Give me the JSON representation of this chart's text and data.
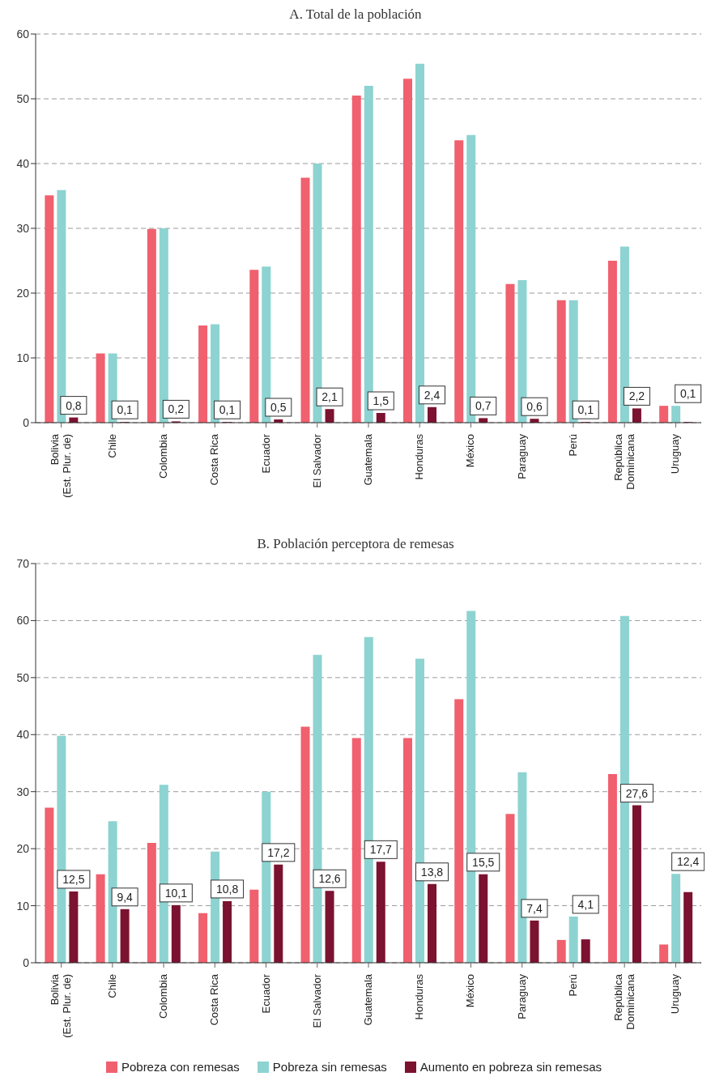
{
  "chart_data": [
    {
      "type": "bar",
      "title": "A. Total de la población",
      "categories": [
        "Bolivia\n(Est. Plur. de)",
        "Chile",
        "Colombia",
        "Costa Rica",
        "Ecuador",
        "El Salvador",
        "Guatemala",
        "Honduras",
        "México",
        "Paraguay",
        "Perú",
        "República\nDominicana",
        "Uruguay"
      ],
      "series": [
        {
          "color": "#f0606e",
          "values": [
            35.1,
            10.7,
            29.9,
            15.0,
            23.6,
            37.8,
            50.5,
            53.1,
            43.6,
            21.4,
            18.9,
            25.0,
            2.6
          ]
        },
        {
          "color": "#8dd3d1",
          "values": [
            35.9,
            10.7,
            30.0,
            15.2,
            24.1,
            40.0,
            52.0,
            55.4,
            44.4,
            22.0,
            18.9,
            27.2,
            2.6
          ]
        },
        {
          "color": "#7b1230",
          "values": [
            0.8,
            0.1,
            0.2,
            0.1,
            0.5,
            2.1,
            1.5,
            2.4,
            0.7,
            0.6,
            0.1,
            2.2,
            0.1
          ],
          "value_labels": [
            "0,8",
            "0,1",
            "0,2",
            "0,1",
            "0,5",
            "2,1",
            "1,5",
            "2,4",
            "0,7",
            "0,6",
            "0,1",
            "2,2",
            "0,1"
          ]
        }
      ],
      "ylim": [
        0,
        60
      ],
      "yticks": [
        0,
        10,
        20,
        30,
        40,
        50,
        60
      ],
      "grid": "y",
      "legend": false
    },
    {
      "type": "bar",
      "title": "B. Población perceptora de remesas",
      "categories": [
        "Bolivia\n(Est. Plur. de)",
        "Chile",
        "Colombia",
        "Costa Rica",
        "Ecuador",
        "El Salvador",
        "Guatemala",
        "Honduras",
        "México",
        "Paraguay",
        "Perú",
        "República\nDominicana",
        "Uruguay"
      ],
      "series": [
        {
          "name": "Pobreza con remesas",
          "color": "#f0606e",
          "values": [
            27.2,
            15.5,
            21.0,
            8.7,
            12.8,
            41.4,
            39.4,
            39.4,
            46.2,
            26.1,
            4.0,
            33.1,
            3.2
          ]
        },
        {
          "name": "Pobreza sin remesas",
          "color": "#8dd3d1",
          "values": [
            39.8,
            24.8,
            31.2,
            19.5,
            30.0,
            54.0,
            57.1,
            53.3,
            61.7,
            33.4,
            8.1,
            60.8,
            15.6
          ]
        },
        {
          "name": "Aumento en pobreza sin remesas",
          "color": "#7b1230",
          "values": [
            12.5,
            9.4,
            10.1,
            10.8,
            17.2,
            12.6,
            17.7,
            13.8,
            15.5,
            7.4,
            4.1,
            27.6,
            12.4
          ],
          "value_labels": [
            "12,5",
            "9,4",
            "10,1",
            "10,8",
            "17,2",
            "12,6",
            "17,7",
            "13,8",
            "15,5",
            "7,4",
            "4,1",
            "27,6",
            "12,4"
          ]
        }
      ],
      "ylim": [
        0,
        70
      ],
      "yticks": [
        0,
        10,
        20,
        30,
        40,
        50,
        60,
        70
      ],
      "grid": "y",
      "legend": "bottom"
    }
  ]
}
